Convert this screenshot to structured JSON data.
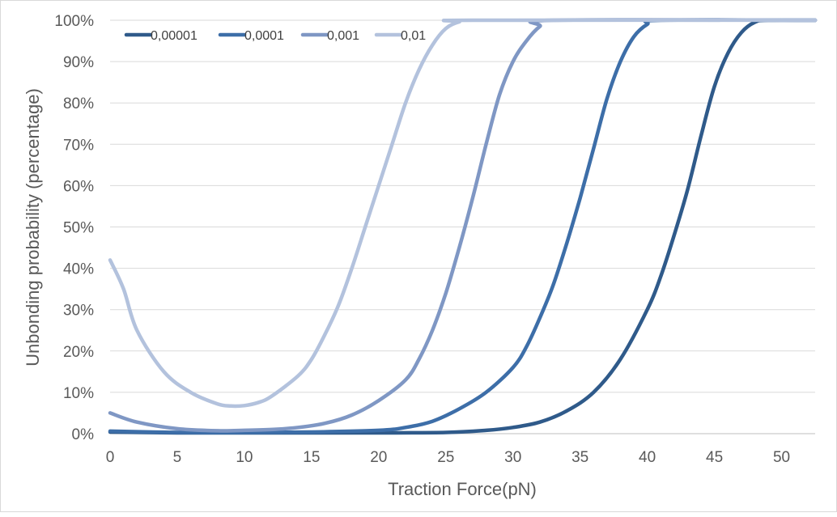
{
  "chart_data": {
    "type": "line",
    "title": "",
    "xlabel": "Traction Force(pN)",
    "ylabel": "Unbonding probability (percentage)",
    "xlim": [
      0,
      52.5
    ],
    "ylim": [
      0,
      100
    ],
    "x_ticks": [
      0,
      5,
      10,
      15,
      20,
      25,
      30,
      35,
      40,
      45,
      50
    ],
    "y_ticks": [
      "0%",
      "10%",
      "20%",
      "30%",
      "40%",
      "50%",
      "60%",
      "70%",
      "80%",
      "90%",
      "100%"
    ],
    "grid": "horizontal",
    "legend_position": "top-left",
    "series": [
      {
        "name": "0,00001",
        "color": "#2f5a8a",
        "points": [
          [
            0,
            0.4
          ],
          [
            5,
            0.2
          ],
          [
            10,
            0.2
          ],
          [
            15,
            0.2
          ],
          [
            20,
            0.2
          ],
          [
            25,
            0.3
          ],
          [
            28,
            0.8
          ],
          [
            30,
            1.5
          ],
          [
            32,
            2.8
          ],
          [
            34,
            5.5
          ],
          [
            36,
            10
          ],
          [
            38,
            18
          ],
          [
            40,
            30
          ],
          [
            41,
            38
          ],
          [
            42,
            48
          ],
          [
            43,
            59
          ],
          [
            44,
            72
          ],
          [
            45,
            84
          ],
          [
            46,
            92
          ],
          [
            47,
            97
          ],
          [
            48,
            99.5
          ],
          [
            49,
            100
          ],
          [
            52.5,
            100
          ]
        ]
      },
      {
        "name": "0,0001",
        "color": "#3d6ea8",
        "points": [
          [
            0,
            0.6
          ],
          [
            5,
            0.3
          ],
          [
            10,
            0.3
          ],
          [
            15,
            0.4
          ],
          [
            20,
            0.8
          ],
          [
            22,
            1.5
          ],
          [
            24,
            3
          ],
          [
            26,
            6
          ],
          [
            28,
            10
          ],
          [
            30,
            16
          ],
          [
            31,
            21
          ],
          [
            32,
            28
          ],
          [
            33,
            36
          ],
          [
            34,
            46
          ],
          [
            35,
            57
          ],
          [
            36,
            69
          ],
          [
            37,
            81
          ],
          [
            38,
            90
          ],
          [
            39,
            96
          ],
          [
            40,
            99
          ],
          [
            41,
            100
          ],
          [
            52.5,
            100
          ]
        ]
      },
      {
        "name": "0,001",
        "color": "#7f97c4",
        "points": [
          [
            0,
            5
          ],
          [
            2,
            2.8
          ],
          [
            5,
            1.2
          ],
          [
            8,
            0.7
          ],
          [
            10,
            0.8
          ],
          [
            12,
            1
          ],
          [
            14,
            1.5
          ],
          [
            16,
            2.5
          ],
          [
            18,
            4.5
          ],
          [
            20,
            8
          ],
          [
            22,
            13
          ],
          [
            23,
            18
          ],
          [
            24,
            25
          ],
          [
            25,
            34
          ],
          [
            26,
            45
          ],
          [
            27,
            57
          ],
          [
            28,
            70
          ],
          [
            29,
            82
          ],
          [
            30,
            90
          ],
          [
            31,
            95
          ],
          [
            32,
            98.5
          ],
          [
            33,
            100
          ],
          [
            52.5,
            100
          ]
        ]
      },
      {
        "name": "0,01",
        "color": "#b3c2dd",
        "points": [
          [
            0,
            42
          ],
          [
            1,
            35
          ],
          [
            2,
            25
          ],
          [
            4,
            15
          ],
          [
            6,
            10
          ],
          [
            8,
            7.2
          ],
          [
            9,
            6.7
          ],
          [
            10,
            6.8
          ],
          [
            11,
            7.5
          ],
          [
            12,
            9
          ],
          [
            14,
            14
          ],
          [
            15,
            18
          ],
          [
            16,
            24
          ],
          [
            17,
            31
          ],
          [
            18,
            40
          ],
          [
            19,
            50
          ],
          [
            20,
            60
          ],
          [
            21,
            70
          ],
          [
            22,
            80
          ],
          [
            23,
            88
          ],
          [
            24,
            94
          ],
          [
            25,
            98
          ],
          [
            26,
            99.6
          ],
          [
            27,
            100
          ],
          [
            52.5,
            100
          ]
        ]
      }
    ]
  }
}
